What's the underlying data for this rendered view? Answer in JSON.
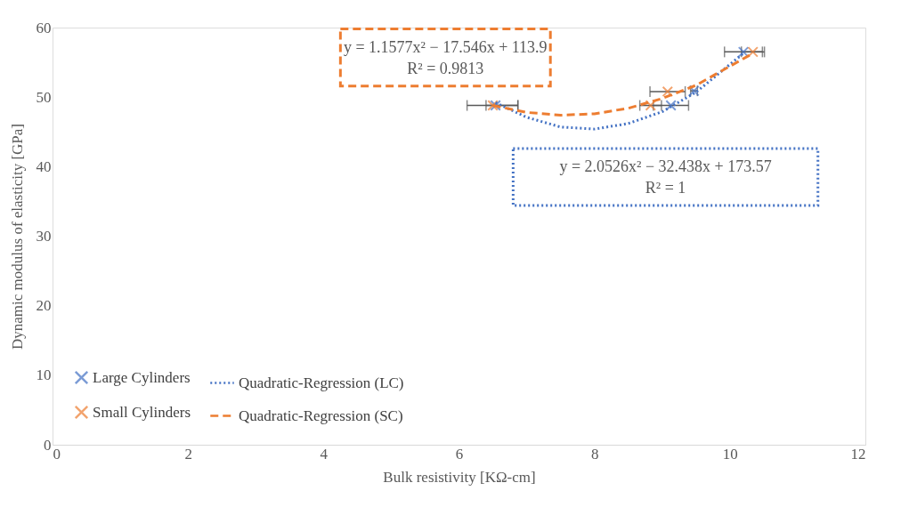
{
  "chart_data": {
    "type": "scatter",
    "xlabel": "Bulk resistivity [KΩ-cm]",
    "ylabel": "Dynamic modulus of elasticity [GPa]",
    "xlim": [
      0,
      12
    ],
    "xticks": [
      0,
      2,
      4,
      6,
      8,
      10,
      12
    ],
    "ylim": [
      0,
      60
    ],
    "yticks": [
      0,
      10,
      20,
      30,
      40,
      50,
      60
    ],
    "grid": false,
    "legend": "bottom left",
    "marker": "cross",
    "series": [
      {
        "name": "Large Cylinders",
        "color": "#4472c4",
        "x": [
          6.54,
          9.13,
          9.47,
          10.2
        ],
        "values": [
          48.8,
          48.8,
          50.9,
          56.5
        ],
        "xerrors": [
          [
            6.4,
            6.87
          ],
          [
            8.87,
            9.39
          ],
          [
            9.42,
            9.52
          ],
          [
            9.92,
            10.48
          ]
        ]
      },
      {
        "name": "Small Cylinders",
        "color": "#ed7d31",
        "x": [
          6.5,
          8.83,
          9.08,
          10.34
        ],
        "values": [
          48.8,
          48.8,
          50.8,
          56.5
        ],
        "xerrors": [
          [
            6.12,
            6.87
          ],
          [
            8.67,
            8.99
          ],
          [
            8.82,
            9.34
          ],
          [
            10.17,
            10.51
          ]
        ]
      },
      {
        "name": "Quadratic-Regression (LC)",
        "color": "#4472c4",
        "type": "line",
        "marker": "none",
        "line_style": "dotted",
        "x": [
          6.54,
          7,
          7.5,
          8,
          8.5,
          9,
          9.5,
          10.2
        ],
        "values": [
          49.2,
          47.1,
          45.7,
          45.4,
          46.2,
          47.9,
          50.7,
          56.3
        ]
      },
      {
        "name": "Quadratic-Regression (SC)",
        "color": "#ed7d31",
        "type": "line",
        "marker": "none",
        "line_style": "dashed",
        "x": [
          6.5,
          7,
          7.5,
          8,
          8.5,
          9,
          9.5,
          10.34
        ],
        "values": [
          48.8,
          47.8,
          47.4,
          47.6,
          48.4,
          49.8,
          51.7,
          56.3
        ]
      }
    ],
    "annotations": [
      "y = 1.1577x² − 17.546x + 113.9\nR² = 0.9813",
      "y = 2.0526x² − 32.438x + 173.57\nR² = 1"
    ]
  }
}
